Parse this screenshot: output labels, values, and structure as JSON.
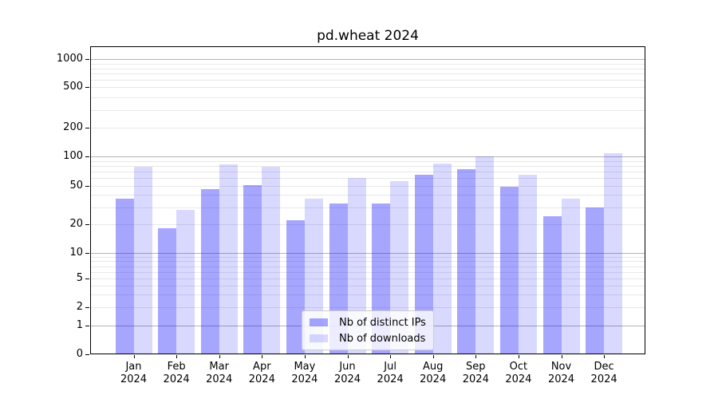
{
  "chart_data": {
    "type": "bar",
    "title": "pd.wheat 2024",
    "categories": [
      "Jan",
      "Feb",
      "Mar",
      "Apr",
      "May",
      "Jun",
      "Jul",
      "Aug",
      "Sep",
      "Oct",
      "Nov",
      "Dec"
    ],
    "category_year": "2024",
    "series": [
      {
        "name": "Nb of distinct IPs",
        "key": "distinct-ips",
        "color": "rgba(0,0,255,0.35)",
        "color_hex_on_white": "#a6a6ff",
        "values": [
          37,
          18,
          46,
          51,
          22,
          33,
          33,
          65,
          74,
          49,
          24,
          30
        ]
      },
      {
        "name": "Nb of downloads",
        "key": "downloads",
        "color": "rgba(0,0,255,0.15)",
        "color_hex_on_white": "#d9d9ff",
        "values": [
          79,
          28,
          83,
          79,
          37,
          60,
          56,
          85,
          101,
          65,
          37,
          108
        ]
      }
    ],
    "xlabel": "",
    "ylabel": "",
    "yscale": "symlog",
    "ylim": [
      0,
      1400
    ],
    "yticks": [
      0,
      1,
      2,
      5,
      10,
      20,
      50,
      100,
      200,
      500,
      1000
    ],
    "minor_gridlines": [
      2,
      3,
      4,
      5,
      6,
      7,
      8,
      9,
      20,
      30,
      40,
      50,
      60,
      70,
      80,
      90,
      200,
      300,
      400,
      500,
      600,
      700,
      800,
      900
    ],
    "major_gridlines": [
      1,
      10,
      100,
      1000
    ],
    "grid": true,
    "legend_position": "lower-center-inside",
    "axis_color": "#000000",
    "major_grid_color": "#b4b4b4",
    "minor_grid_color": "#e8e8e8",
    "background_color": "#ffffff"
  }
}
